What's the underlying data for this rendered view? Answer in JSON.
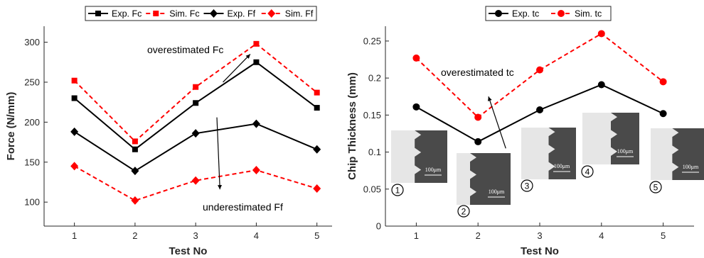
{
  "colors": {
    "experimental": "#000000",
    "simulated": "#ff0000",
    "axis": "#262626",
    "micrograph_chip": "#4a4a4a",
    "micrograph_tool": "#e6e6e6"
  },
  "chart_data": [
    {
      "type": "line",
      "xlabel": "Test No",
      "ylabel": "Force (N/mm)",
      "x": [
        1,
        2,
        3,
        4,
        5
      ],
      "xlim": [
        0.5,
        5.25
      ],
      "ylim": [
        70,
        320
      ],
      "xticks": [
        "1",
        "2",
        "3",
        "4",
        "5"
      ],
      "yticks": [
        "100",
        "150",
        "200",
        "250",
        "300"
      ],
      "grid": false,
      "legend_position": "top",
      "series": [
        {
          "name": "Exp. Fc",
          "values": [
            230,
            166,
            224,
            275,
            218
          ],
          "color": "#000000",
          "line": "solid",
          "marker": "square"
        },
        {
          "name": "Sim. Fc",
          "values": [
            252,
            176,
            244,
            298,
            237
          ],
          "color": "#ff0000",
          "line": "dashed",
          "marker": "square"
        },
        {
          "name": "Exp. Ff",
          "values": [
            188,
            139,
            186,
            198,
            166
          ],
          "color": "#000000",
          "line": "solid",
          "marker": "diamond"
        },
        {
          "name": "Sim. Ff",
          "values": [
            145,
            102,
            127,
            140,
            117
          ],
          "color": "#ff0000",
          "line": "dashed",
          "marker": "diamond"
        }
      ],
      "annotations": [
        {
          "text": "overestimated Fc",
          "arrow_from": [
            3.45,
            250
          ],
          "arrow_to": [
            3.9,
            285
          ]
        },
        {
          "text": "underestimated Ff",
          "arrow_from": [
            3.35,
            206
          ],
          "arrow_to": [
            3.4,
            116
          ]
        }
      ]
    },
    {
      "type": "line",
      "xlabel": "Test No",
      "ylabel": "Chip Thickness (mm)",
      "x": [
        1,
        2,
        3,
        4,
        5
      ],
      "xlim": [
        0.5,
        5.5
      ],
      "ylim": [
        0,
        0.27
      ],
      "xticks": [
        "1",
        "2",
        "3",
        "4",
        "5"
      ],
      "yticks": [
        "0",
        "0.05",
        "0.1",
        "0.15",
        "0.2",
        "0.25"
      ],
      "grid": false,
      "legend_position": "top",
      "series": [
        {
          "name": "Exp. tc",
          "values": [
            0.161,
            0.114,
            0.157,
            0.191,
            0.152
          ],
          "color": "#000000",
          "line": "solid",
          "marker": "circle"
        },
        {
          "name": "Sim. tc",
          "values": [
            0.227,
            0.147,
            0.211,
            0.26,
            0.195
          ],
          "color": "#ff0000",
          "line": "dashed",
          "marker": "circle"
        }
      ],
      "annotations": [
        {
          "text": "overestimated tc",
          "arrow_from": [
            2.45,
            0.105
          ],
          "arrow_to": [
            2.17,
            0.175
          ]
        }
      ],
      "insets": [
        {
          "label": "1",
          "scale_bar": "100μm"
        },
        {
          "label": "2",
          "scale_bar": "100μm"
        },
        {
          "label": "3",
          "scale_bar": "100μm"
        },
        {
          "label": "4",
          "scale_bar": "100μm"
        },
        {
          "label": "5",
          "scale_bar": "100μm"
        }
      ]
    }
  ]
}
